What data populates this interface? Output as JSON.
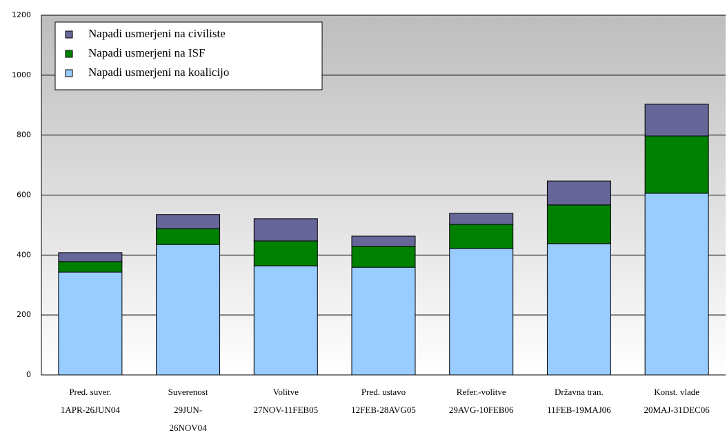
{
  "chart_data": {
    "type": "stacked_bar",
    "categories": [
      [
        "Pred. suver.",
        "1APR-26JUN04"
      ],
      [
        "Suverenost",
        "29JUN-",
        "26NOV04"
      ],
      [
        "Volitve",
        "27NOV-11FEB05"
      ],
      [
        "Pred. ustavo",
        "12FEB-28AVG05"
      ],
      [
        "Refer.-volitve",
        "29AVG-10FEB06"
      ],
      [
        "Državna tran.",
        "11FEB-19MAJ06"
      ],
      [
        "Konst. vlade",
        "20MAJ-31DEC06"
      ]
    ],
    "series": [
      {
        "name": "Napadi usmerjeni na koalicijo",
        "color": "#99ccff",
        "values": [
          343,
          435,
          364,
          359,
          422,
          438,
          606
        ]
      },
      {
        "name": "Napadi usmerjeni na ISF",
        "color": "#008000",
        "values": [
          35,
          53,
          83,
          70,
          80,
          129,
          191
        ]
      },
      {
        "name": "Napadi usmerjeni na civiliste",
        "color": "#666699",
        "values": [
          30,
          47,
          74,
          34,
          37,
          80,
          106
        ]
      }
    ],
    "ylim": [
      0,
      1200
    ],
    "yticks": [
      0,
      200,
      400,
      600,
      800,
      1000,
      1200
    ],
    "grid": true,
    "legend": "top-left"
  }
}
